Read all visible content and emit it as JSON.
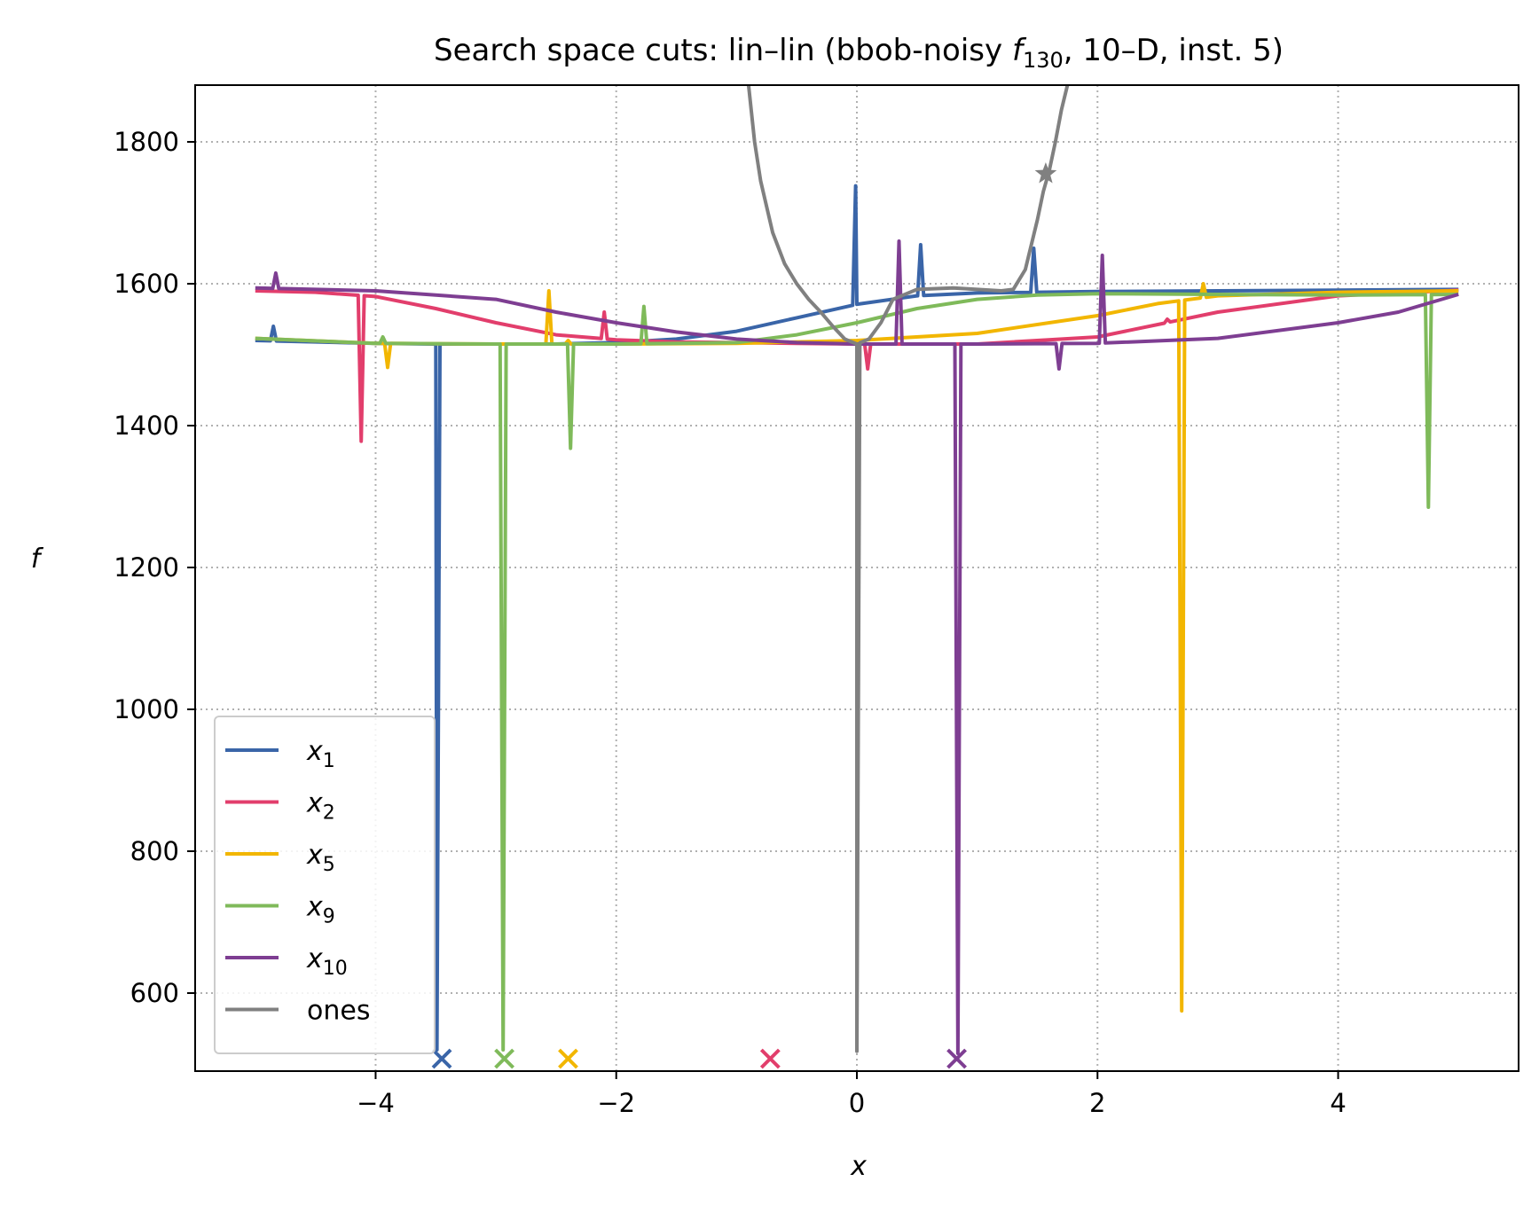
{
  "chart_data": {
    "type": "line",
    "title_prefix": "Search space cuts: lin–lin (bbob-noisy ",
    "title_fn": "f",
    "title_fn_sub": "130",
    "title_suffix": ", 10–D, inst. 5)",
    "xlabel": "x",
    "ylabel": "f",
    "xlim": [
      -5.5,
      5.5
    ],
    "ylim": [
      490,
      1880
    ],
    "xticks": [
      -4,
      -2,
      0,
      2,
      4
    ],
    "xtick_labels": [
      "−4",
      "−2",
      "0",
      "2",
      "4"
    ],
    "yticks": [
      600,
      800,
      1000,
      1200,
      1400,
      1600,
      1800
    ],
    "ytick_labels": [
      "600",
      "800",
      "1000",
      "1200",
      "1400",
      "1600",
      "1800"
    ],
    "grid": true,
    "legend_position": "lower-left",
    "series": [
      {
        "name": "x1",
        "base": "x",
        "sub": "1",
        "color": "#3a65a8",
        "x": [
          -5.0,
          -4.5,
          -4.0,
          -3.5,
          -3.0,
          -2.5,
          -2.0,
          -1.5,
          -1.0,
          -0.5,
          0.0,
          0.5,
          1.0,
          1.5,
          2.0,
          3.0,
          4.0,
          5.0
        ],
        "y": [
          1520,
          1518,
          1516,
          1515,
          1515,
          1515,
          1517,
          1522,
          1533,
          1552,
          1571,
          1583,
          1587,
          1588,
          1589,
          1590,
          1591,
          1592
        ],
        "spikes": [
          [
            -4.85,
            1540
          ],
          [
            -3.49,
            520
          ],
          [
            -0.01,
            1738
          ],
          [
            0.53,
            1655
          ],
          [
            1.47,
            1650
          ]
        ],
        "marker_x": -3.45
      },
      {
        "name": "x2",
        "base": "x",
        "sub": "2",
        "color": "#e23e6c",
        "x": [
          -5.0,
          -4.5,
          -4.0,
          -3.5,
          -3.0,
          -2.5,
          -2.0,
          -1.5,
          -1.0,
          -0.5,
          0.0,
          1.0,
          2.0,
          3.0,
          4.0,
          5.0
        ],
        "y": [
          1590,
          1588,
          1582,
          1565,
          1545,
          1528,
          1521,
          1518,
          1517,
          1516,
          1515,
          1515,
          1525,
          1560,
          1583,
          1591
        ],
        "spikes": [
          [
            -4.12,
            1378
          ],
          [
            -2.1,
            1560
          ],
          [
            0.09,
            1480
          ],
          [
            2.58,
            1550
          ]
        ],
        "marker_x": -0.72
      },
      {
        "name": "x5",
        "base": "x",
        "sub": "5",
        "color": "#f2b600",
        "x": [
          -5.0,
          -4.0,
          -3.0,
          -2.0,
          -1.0,
          0.0,
          1.0,
          2.0,
          2.5,
          3.0,
          4.0,
          5.0
        ],
        "y": [
          1523,
          1516,
          1515,
          1515,
          1516,
          1520,
          1530,
          1555,
          1572,
          1583,
          1588,
          1590
        ],
        "spikes": [
          [
            -3.9,
            1482
          ],
          [
            -2.56,
            1590
          ],
          [
            -2.4,
            1520
          ],
          [
            2.7,
            575
          ],
          [
            2.88,
            1600
          ]
        ],
        "marker_x": -2.4
      },
      {
        "name": "x9",
        "base": "x",
        "sub": "9",
        "color": "#7fba5a",
        "x": [
          -5.0,
          -4.0,
          -3.0,
          -2.0,
          -1.0,
          -0.5,
          0.0,
          0.5,
          1.0,
          1.5,
          2.0,
          3.0,
          4.0,
          5.0
        ],
        "y": [
          1523,
          1516,
          1515,
          1515,
          1517,
          1528,
          1545,
          1565,
          1578,
          1584,
          1586,
          1585,
          1584,
          1585
        ],
        "spikes": [
          [
            -3.94,
            1525
          ],
          [
            -2.94,
            520
          ],
          [
            -2.38,
            1368
          ],
          [
            -1.77,
            1568
          ],
          [
            4.75,
            1285
          ]
        ],
        "marker_x": -2.93
      },
      {
        "name": "x10",
        "base": "x",
        "sub": "10",
        "color": "#7e3e92",
        "x": [
          -5.0,
          -4.0,
          -3.0,
          -2.5,
          -2.0,
          -1.5,
          -1.0,
          -0.5,
          0.0,
          1.0,
          2.0,
          3.0,
          4.0,
          4.5,
          5.0
        ],
        "y": [
          1594,
          1590,
          1578,
          1560,
          1545,
          1532,
          1522,
          1517,
          1515,
          1515,
          1516,
          1523,
          1545,
          1560,
          1585
        ],
        "spikes": [
          [
            -4.83,
            1615
          ],
          [
            0.35,
            1660
          ],
          [
            0.84,
            515
          ],
          [
            1.68,
            1480
          ],
          [
            2.04,
            1640
          ]
        ],
        "marker_x": 0.83
      },
      {
        "name": "ones",
        "color": "#808080",
        "x": [
          -0.9,
          -0.85,
          -0.8,
          -0.7,
          -0.6,
          -0.5,
          -0.4,
          -0.3,
          -0.2,
          -0.1,
          0.0,
          0.1,
          0.2,
          0.3,
          0.5,
          0.8,
          1.0,
          1.2,
          1.3,
          1.4,
          1.5,
          1.55,
          1.6,
          1.65,
          1.7,
          1.75
        ],
        "y": [
          1880,
          1800,
          1745,
          1672,
          1628,
          1600,
          1578,
          1560,
          1540,
          1522,
          1515,
          1522,
          1545,
          1578,
          1592,
          1594,
          1592,
          1590,
          1592,
          1620,
          1690,
          1730,
          1760,
          1800,
          1845,
          1880
        ],
        "spikes": [
          [
            0.0,
            518
          ]
        ],
        "star": [
          1.57,
          1755
        ]
      }
    ]
  }
}
